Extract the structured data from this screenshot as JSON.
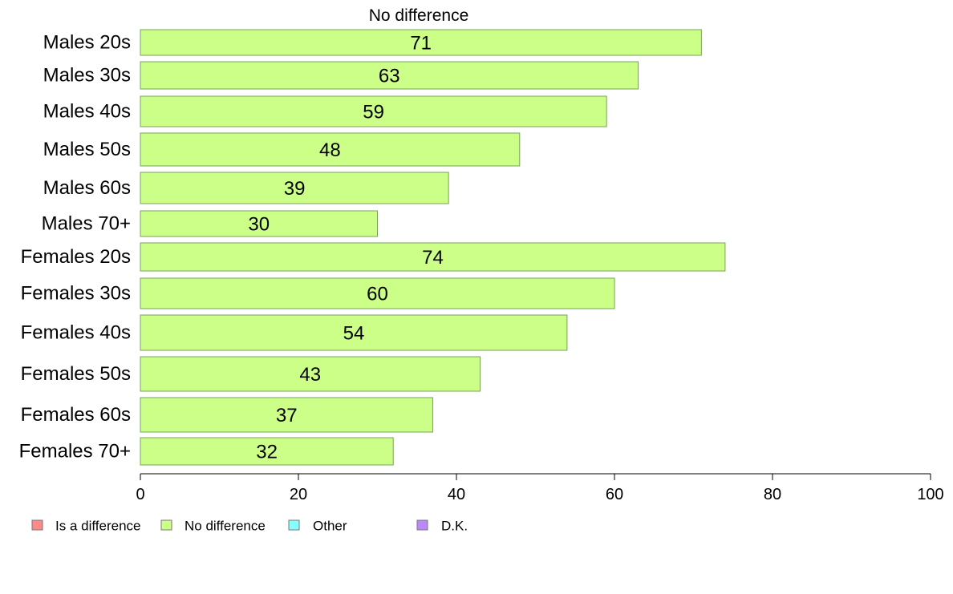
{
  "chart_data": {
    "type": "bar",
    "orientation": "horizontal",
    "title": "No difference",
    "categories": [
      "Males 20s",
      "Males 30s",
      "Males 40s",
      "Males 50s",
      "Males 60s",
      "Males 70+",
      "Females 20s",
      "Females 30s",
      "Females 40s",
      "Females 50s",
      "Females 60s",
      "Females 70+"
    ],
    "series": [
      {
        "name": "No difference",
        "color": "#ccff88",
        "values": [
          71,
          63,
          59,
          48,
          39,
          30,
          74,
          60,
          54,
          43,
          37,
          32
        ]
      }
    ],
    "xlim": [
      0,
      100
    ],
    "xticks": [
      0,
      20,
      40,
      60,
      80,
      100
    ],
    "grid": false,
    "legend": {
      "placement": "bottom-left",
      "entries": [
        {
          "label": "Is a difference",
          "color": "#ff8888"
        },
        {
          "label": "No difference",
          "color": "#ccff88"
        },
        {
          "label": "Other",
          "color": "#88ffff"
        },
        {
          "label": "D.K.",
          "color": "#bb88ff"
        }
      ]
    },
    "colors": {
      "bar_stroke": "#7aa05a",
      "axis": "#000000"
    }
  }
}
